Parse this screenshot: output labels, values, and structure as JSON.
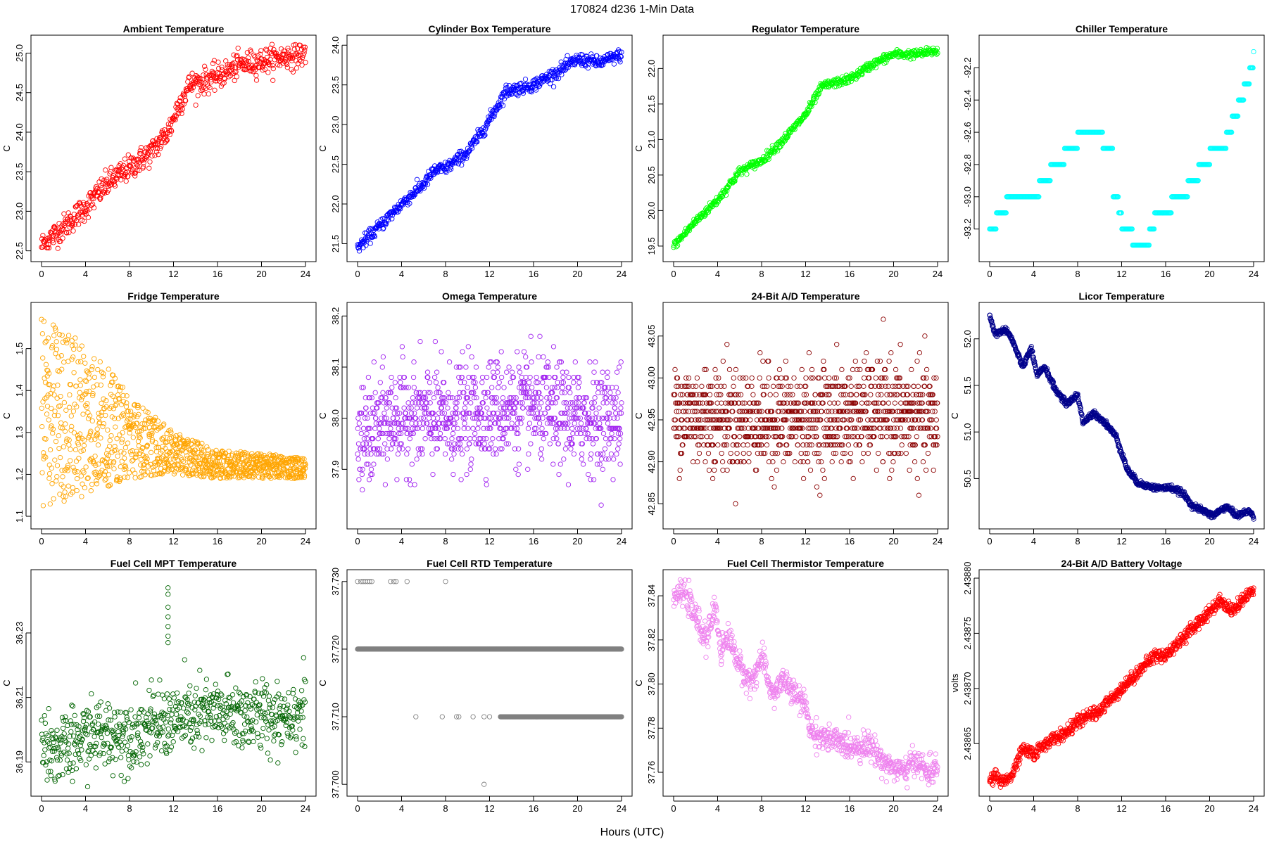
{
  "figure": {
    "title": "170824    d236    1-Min Data",
    "xlabel": "Hours (UTC)"
  },
  "chart_data": [
    {
      "type": "scatter",
      "title": "Ambient Temperature",
      "ylabel": "C",
      "color": "#ff0000",
      "xlim": [
        0,
        24
      ],
      "ylim": [
        22.47,
        25.12
      ],
      "xticks": [
        0,
        4,
        8,
        12,
        16,
        20,
        24
      ],
      "yticks": [
        22.5,
        23.0,
        23.5,
        24.0,
        24.5,
        25.0
      ],
      "ytick_labels": [
        "22.5",
        "23.0",
        "23.5",
        "24.0",
        "24.5",
        "25.0"
      ],
      "shape": "trend",
      "points": [
        [
          0,
          22.57
        ],
        [
          2,
          22.8
        ],
        [
          4,
          23.05
        ],
        [
          6,
          23.35
        ],
        [
          8,
          23.55
        ],
        [
          10,
          23.75
        ],
        [
          11.5,
          24.0
        ],
        [
          12.5,
          24.35
        ],
        [
          13.5,
          24.6
        ],
        [
          16,
          24.7
        ],
        [
          18,
          24.85
        ],
        [
          20,
          24.9
        ],
        [
          22,
          24.95
        ],
        [
          24,
          25.0
        ]
      ],
      "noise": 0.08,
      "n": 600,
      "density": 1
    },
    {
      "type": "scatter",
      "title": "Cylinder Box Temperature",
      "ylabel": "C",
      "color": "#0000ff",
      "xlim": [
        0,
        24
      ],
      "ylim": [
        21.38,
        24.02
      ],
      "xticks": [
        0,
        4,
        8,
        12,
        16,
        20,
        24
      ],
      "yticks": [
        21.5,
        22.0,
        22.5,
        23.0,
        23.5,
        24.0
      ],
      "ytick_labels": [
        "21.5",
        "22.0",
        "22.5",
        "23.0",
        "23.5",
        "24.0"
      ],
      "shape": "trend",
      "points": [
        [
          0,
          21.45
        ],
        [
          2,
          21.72
        ],
        [
          4,
          22.0
        ],
        [
          6,
          22.25
        ],
        [
          7,
          22.42
        ],
        [
          8,
          22.45
        ],
        [
          10,
          22.65
        ],
        [
          11.5,
          22.95
        ],
        [
          13.5,
          23.42
        ],
        [
          16,
          23.5
        ],
        [
          18,
          23.65
        ],
        [
          20,
          23.82
        ],
        [
          22,
          23.78
        ],
        [
          24,
          23.88
        ]
      ],
      "noise": 0.04,
      "n": 600,
      "density": 1
    },
    {
      "type": "scatter",
      "title": "Regulator Temperature",
      "ylabel": "C",
      "color": "#00ff00",
      "xlim": [
        0,
        24
      ],
      "ylim": [
        19.4,
        22.35
      ],
      "xticks": [
        0,
        4,
        8,
        12,
        16,
        20,
        24
      ],
      "yticks": [
        19.5,
        20.0,
        20.5,
        21.0,
        21.5,
        22.0
      ],
      "ytick_labels": [
        "19.5",
        "20.0",
        "20.5",
        "21.0",
        "21.5",
        "22.0"
      ],
      "shape": "trend",
      "points": [
        [
          0,
          19.5
        ],
        [
          2,
          19.85
        ],
        [
          4,
          20.15
        ],
        [
          6,
          20.55
        ],
        [
          8,
          20.7
        ],
        [
          10,
          21.0
        ],
        [
          12,
          21.35
        ],
        [
          13.5,
          21.75
        ],
        [
          16,
          21.85
        ],
        [
          18,
          22.05
        ],
        [
          20,
          22.2
        ],
        [
          22,
          22.2
        ],
        [
          24,
          22.25
        ]
      ],
      "noise": 0.03,
      "n": 600,
      "density": 1
    },
    {
      "type": "scatter",
      "title": "Chiller Temperature",
      "ylabel": "",
      "color": "#00ffff",
      "xlim": [
        0,
        24
      ],
      "ylim": [
        -93.35,
        -92.05
      ],
      "xticks": [
        0,
        4,
        8,
        12,
        16,
        20,
        24
      ],
      "yticks": [
        -93.2,
        -93.0,
        -92.8,
        -92.6,
        -92.4,
        -92.2
      ],
      "ytick_labels": [
        "-93.2",
        "-93.0",
        "-92.8",
        "-92.6",
        "-92.4",
        "-92.2"
      ],
      "shape": "steps",
      "points": [
        [
          0,
          -93.2
        ],
        [
          0.6,
          -93.1
        ],
        [
          1.5,
          -93.0
        ],
        [
          4,
          -93.0
        ],
        [
          4.5,
          -92.9
        ],
        [
          5.5,
          -92.8
        ],
        [
          6.8,
          -92.7
        ],
        [
          8,
          -92.6
        ],
        [
          10.3,
          -92.7
        ],
        [
          11.2,
          -93.0
        ],
        [
          11.7,
          -93.1
        ],
        [
          12,
          -93.2
        ],
        [
          13,
          -93.3
        ],
        [
          14.5,
          -93.2
        ],
        [
          15,
          -93.1
        ],
        [
          16.5,
          -93.0
        ],
        [
          18,
          -92.9
        ],
        [
          19,
          -92.8
        ],
        [
          20,
          -92.7
        ],
        [
          21.5,
          -92.6
        ],
        [
          22,
          -92.5
        ],
        [
          22.6,
          -92.4
        ],
        [
          23.1,
          -92.3
        ],
        [
          23.6,
          -92.2
        ],
        [
          24,
          -92.1
        ]
      ],
      "n": 420,
      "density": 1
    },
    {
      "type": "scatter",
      "title": "Fridge Temperature",
      "ylabel": "C",
      "color": "#ffa500",
      "xlim": [
        0,
        24
      ],
      "ylim": [
        1.09,
        1.59
      ],
      "xticks": [
        0,
        4,
        8,
        12,
        16,
        20,
        24
      ],
      "yticks": [
        1.1,
        1.2,
        1.3,
        1.4,
        1.5
      ],
      "ytick_labels": [
        "1.1",
        "1.2",
        "1.3",
        "1.4",
        "1.5"
      ],
      "shape": "band",
      "points": [
        [
          0,
          1.11,
          1.58
        ],
        [
          4,
          1.15,
          1.52
        ],
        [
          8,
          1.19,
          1.39
        ],
        [
          12,
          1.2,
          1.3
        ],
        [
          16,
          1.19,
          1.26
        ],
        [
          20,
          1.19,
          1.25
        ],
        [
          24,
          1.19,
          1.24
        ]
      ],
      "n": 1100,
      "density": 1
    },
    {
      "type": "scatter",
      "title": "Omega Temperature",
      "ylabel": "C",
      "color": "#a020f0",
      "xlim": [
        0,
        24
      ],
      "ylim": [
        37.8,
        38.21
      ],
      "xticks": [
        0,
        4,
        8,
        12,
        16,
        20,
        24
      ],
      "yticks": [
        37.9,
        38.0,
        38.1,
        38.2
      ],
      "ytick_labels": [
        "37.9",
        "38.0",
        "38.1",
        "38.2"
      ],
      "shape": "quantized",
      "points": [
        [
          0,
          37.95
        ],
        [
          3,
          38.0
        ],
        [
          6,
          38.0
        ],
        [
          9,
          38.0
        ],
        [
          12,
          38.02
        ],
        [
          16,
          38.02
        ],
        [
          20,
          38.0
        ],
        [
          24,
          38.0
        ]
      ],
      "noise": 0.05,
      "step": 0.01,
      "n": 1000,
      "density": 1
    },
    {
      "type": "scatter",
      "title": "24-Bit A/D Temperature",
      "ylabel": "C",
      "color": "#8b0000",
      "xlim": [
        0,
        24
      ],
      "ylim": [
        42.83,
        43.08
      ],
      "xticks": [
        0,
        4,
        8,
        12,
        16,
        20,
        24
      ],
      "yticks": [
        42.85,
        42.9,
        42.95,
        43.0,
        43.05
      ],
      "ytick_labels": [
        "42.85",
        "42.90",
        "42.95",
        "43.00",
        "43.05"
      ],
      "shape": "quantized",
      "points": [
        [
          0,
          42.96
        ],
        [
          6,
          42.95
        ],
        [
          12,
          42.95
        ],
        [
          18,
          42.96
        ],
        [
          24,
          42.95
        ]
      ],
      "noise": 0.03,
      "step": 0.01,
      "n": 1100,
      "density": 1
    },
    {
      "type": "scatter",
      "title": "Licor Temperature",
      "ylabel": "C",
      "color": "#00008b",
      "xlim": [
        0,
        24
      ],
      "ylim": [
        50.05,
        52.3
      ],
      "xticks": [
        0,
        4,
        8,
        12,
        16,
        20,
        24
      ],
      "yticks": [
        50.5,
        51.0,
        51.5,
        52.0
      ],
      "ytick_labels": [
        "50.5",
        "51.0",
        "51.5",
        "52.0"
      ],
      "shape": "trend",
      "points": [
        [
          0,
          52.25
        ],
        [
          0.5,
          52.05
        ],
        [
          1.5,
          52.1
        ],
        [
          2,
          52.0
        ],
        [
          3,
          51.7
        ],
        [
          3.8,
          51.9
        ],
        [
          4.3,
          51.6
        ],
        [
          5,
          51.7
        ],
        [
          6,
          51.45
        ],
        [
          7,
          51.3
        ],
        [
          8,
          51.4
        ],
        [
          8.5,
          51.1
        ],
        [
          9.5,
          51.2
        ],
        [
          10.5,
          51.1
        ],
        [
          11.5,
          50.95
        ],
        [
          12.5,
          50.6
        ],
        [
          13.5,
          50.45
        ],
        [
          15,
          50.4
        ],
        [
          16.5,
          50.4
        ],
        [
          17.5,
          50.35
        ],
        [
          18.5,
          50.2
        ],
        [
          19.5,
          50.15
        ],
        [
          20.3,
          50.1
        ],
        [
          21.5,
          50.2
        ],
        [
          22.5,
          50.1
        ],
        [
          23.5,
          50.15
        ],
        [
          24,
          50.1
        ]
      ],
      "noise": 0.015,
      "n": 900,
      "density": 1
    },
    {
      "type": "scatter",
      "title": "Fuel Cell MPT Temperature",
      "ylabel": "C",
      "color": "#006400",
      "xlim": [
        0,
        24
      ],
      "ylim": [
        36.182,
        36.247
      ],
      "xticks": [
        0,
        4,
        8,
        12,
        16,
        20,
        24
      ],
      "yticks": [
        36.19,
        36.21,
        36.23
      ],
      "ytick_labels": [
        "36.19",
        "36.21",
        "36.23"
      ],
      "shape": "trend",
      "points": [
        [
          0,
          36.196
        ],
        [
          2,
          36.193
        ],
        [
          4,
          36.198
        ],
        [
          8,
          36.199
        ],
        [
          12,
          36.203
        ],
        [
          16,
          36.205
        ],
        [
          20,
          36.204
        ],
        [
          24,
          36.206
        ]
      ],
      "noise": 0.0055,
      "n": 700,
      "density": 1,
      "outliers": [
        [
          11.5,
          36.244
        ],
        [
          11.5,
          36.242
        ],
        [
          11.5,
          36.238
        ],
        [
          11.5,
          36.235
        ],
        [
          11.5,
          36.232
        ],
        [
          11.5,
          36.229
        ],
        [
          11.5,
          36.227
        ]
      ]
    },
    {
      "type": "scatter",
      "title": "Fuel Cell RTD Temperature",
      "ylabel": "C",
      "color": "#808080",
      "xlim": [
        0,
        24
      ],
      "ylim": [
        37.6995,
        37.7305
      ],
      "xticks": [
        0,
        4,
        8,
        12,
        16,
        20,
        24
      ],
      "yticks": [
        37.7,
        37.71,
        37.72,
        37.73
      ],
      "ytick_labels": [
        "37.700",
        "37.710",
        "37.720",
        "37.730"
      ],
      "shape": "levels",
      "points": [
        [
          0,
          37.72
        ],
        [
          24,
          37.72
        ]
      ],
      "n": 900,
      "density": 1,
      "levels": [
        {
          "y": 37.73,
          "x": [
            0,
            0.3,
            0.5,
            0.7,
            0.9,
            1.1,
            1.3,
            3.0,
            3.3,
            3.5,
            4.5,
            8.0
          ]
        },
        {
          "y": 37.72,
          "x_start": 0,
          "x_end": 24
        },
        {
          "y": 37.71,
          "x": [
            5.3,
            7.7,
            9.0,
            9.2,
            10.5,
            11.5,
            12.0,
            13.0
          ],
          "x_start": 13.0,
          "x_end": 24
        },
        {
          "y": 37.7,
          "x": [
            11.5
          ]
        }
      ]
    },
    {
      "type": "scatter",
      "title": "Fuel Cell Thermistor Temperature",
      "ylabel": "C",
      "color": "#ee82ee",
      "xlim": [
        0,
        24
      ],
      "ylim": [
        37.753,
        37.848
      ],
      "xticks": [
        0,
        4,
        8,
        12,
        16,
        20,
        24
      ],
      "yticks": [
        37.76,
        37.78,
        37.8,
        37.82,
        37.84
      ],
      "ytick_labels": [
        "37.76",
        "37.78",
        "37.80",
        "37.82",
        "37.84"
      ],
      "shape": "trend",
      "points": [
        [
          0,
          37.84
        ],
        [
          1,
          37.842
        ],
        [
          2,
          37.83
        ],
        [
          3,
          37.82
        ],
        [
          3.8,
          37.835
        ],
        [
          4.3,
          37.815
        ],
        [
          5,
          37.822
        ],
        [
          6,
          37.808
        ],
        [
          7,
          37.8
        ],
        [
          8,
          37.812
        ],
        [
          9,
          37.795
        ],
        [
          10,
          37.802
        ],
        [
          11,
          37.795
        ],
        [
          12,
          37.79
        ],
        [
          12.5,
          37.778
        ],
        [
          14,
          37.775
        ],
        [
          16,
          37.772
        ],
        [
          18,
          37.772
        ],
        [
          19,
          37.765
        ],
        [
          20,
          37.762
        ],
        [
          21,
          37.76
        ],
        [
          22,
          37.766
        ],
        [
          23,
          37.76
        ],
        [
          24,
          37.762
        ]
      ],
      "noise": 0.003,
      "n": 800,
      "density": 1
    },
    {
      "type": "scatter",
      "title": "24-Bit A/D Battery Voltage",
      "ylabel": "volts",
      "color": "#ff0000",
      "xlim": [
        0,
        24
      ],
      "ylim": [
        2.43861,
        2.4388
      ],
      "xticks": [
        0,
        4,
        8,
        12,
        16,
        20,
        24
      ],
      "yticks": [
        2.43865,
        2.4387,
        2.43875,
        2.4388
      ],
      "ytick_labels": [
        "2.43865",
        "2.43870",
        "2.43875",
        "2.43880"
      ],
      "shape": "trend",
      "points": [
        [
          0,
          2.438615
        ],
        [
          0.5,
          2.438622
        ],
        [
          1,
          2.438615
        ],
        [
          2,
          2.43862
        ],
        [
          3,
          2.438645
        ],
        [
          4,
          2.43864
        ],
        [
          5,
          2.43865
        ],
        [
          6,
          2.438655
        ],
        [
          7,
          2.43866
        ],
        [
          8,
          2.43867
        ],
        [
          9,
          2.438675
        ],
        [
          10,
          2.43868
        ],
        [
          11,
          2.43869
        ],
        [
          12,
          2.4387
        ],
        [
          13,
          2.43871
        ],
        [
          14,
          2.43872
        ],
        [
          15,
          2.43873
        ],
        [
          16,
          2.43873
        ],
        [
          17,
          2.43874
        ],
        [
          18,
          2.43875
        ],
        [
          19,
          2.43876
        ],
        [
          20,
          2.43877
        ],
        [
          21,
          2.43878
        ],
        [
          22,
          2.43877
        ],
        [
          23,
          2.43878
        ],
        [
          24,
          2.43879
        ]
      ],
      "noise": 2.8e-06,
      "n": 900,
      "density": 1
    }
  ]
}
